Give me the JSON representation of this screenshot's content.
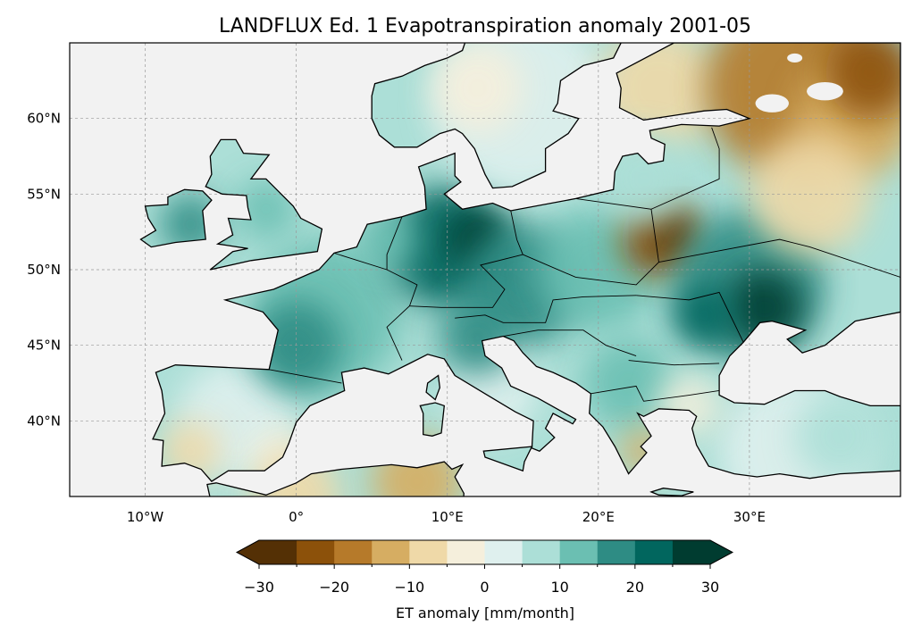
{
  "chart_data": {
    "type": "map",
    "title": "LANDFLUX Ed. 1 Evapotranspiration anomaly 2001-05",
    "projection": "PlateCarree",
    "extent_lon": [
      -15,
      40
    ],
    "extent_lat": [
      35,
      65
    ],
    "xticks": [
      {
        "value": -10,
        "label": "10°W"
      },
      {
        "value": 0,
        "label": "0°"
      },
      {
        "value": 10,
        "label": "10°E"
      },
      {
        "value": 20,
        "label": "20°E"
      },
      {
        "value": 30,
        "label": "30°E"
      }
    ],
    "yticks": [
      {
        "value": 40,
        "label": "40°N"
      },
      {
        "value": 45,
        "label": "45°N"
      },
      {
        "value": 50,
        "label": "50°N"
      },
      {
        "value": 55,
        "label": "55°N"
      },
      {
        "value": 60,
        "label": "60°N"
      }
    ],
    "grid": true,
    "colorbar": {
      "label": "ET anomaly [mm/month]",
      "levels": [
        -30,
        -25,
        -20,
        -15,
        -10,
        -5,
        0,
        5,
        10,
        15,
        20,
        25,
        30
      ],
      "tick_labels": [
        "−30",
        "−20",
        "−10",
        "0",
        "10",
        "20",
        "30"
      ],
      "tick_values": [
        -30,
        -20,
        -10,
        0,
        10,
        20,
        30
      ],
      "colors": [
        "#543005",
        "#8c510a",
        "#b67a2a",
        "#d6ad62",
        "#efd9a8",
        "#f5efdc",
        "#dff0ee",
        "#acdfd7",
        "#6bbfb2",
        "#2e8c84",
        "#01665e",
        "#003c30"
      ],
      "extend": "both",
      "orientation": "horizontal"
    },
    "background_color": "#f2f2f2"
  }
}
